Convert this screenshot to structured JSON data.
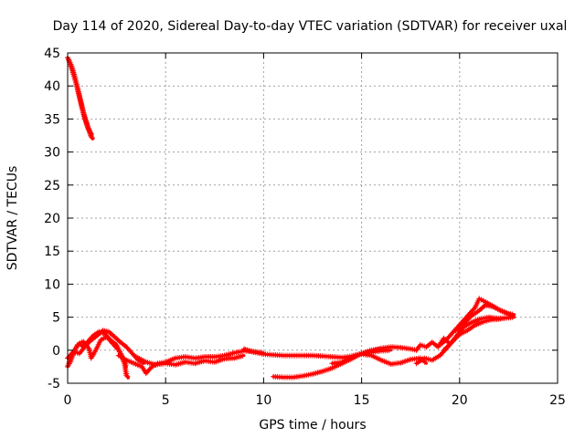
{
  "chart_data": {
    "type": "scatter",
    "title": "Day 114 of 2020, Sidereal Day-to-day VTEC variation (SDTVAR) for receiver uxal",
    "xlabel": "GPS time / hours",
    "ylabel": "SDTVAR / TECUs",
    "xlim": [
      0,
      25
    ],
    "ylim": [
      -5,
      45
    ],
    "xticks": [
      0,
      5,
      10,
      15,
      20,
      25
    ],
    "yticks": [
      -5,
      0,
      5,
      10,
      15,
      20,
      25,
      30,
      35,
      40,
      45
    ],
    "grid": true,
    "marker": "+",
    "series": [
      {
        "name": "SDTVAR",
        "color": "#ff0000",
        "traces": [
          [
            [
              0.0,
              44.3
            ],
            [
              0.2,
              43.0
            ],
            [
              0.4,
              41.0
            ],
            [
              0.6,
              38.5
            ],
            [
              0.8,
              36.0
            ],
            [
              1.0,
              34.0
            ],
            [
              1.2,
              32.3
            ],
            [
              1.3,
              32.0
            ]
          ],
          [
            [
              0.05,
              44.0
            ],
            [
              0.25,
              42.3
            ],
            [
              0.45,
              40.2
            ],
            [
              0.65,
              37.8
            ],
            [
              0.85,
              35.4
            ],
            [
              1.05,
              33.6
            ],
            [
              1.25,
              32.5
            ]
          ],
          [
            [
              0.0,
              -2.5
            ],
            [
              0.2,
              -1.0
            ],
            [
              0.4,
              0.3
            ],
            [
              0.6,
              1.0
            ],
            [
              0.8,
              0.5
            ],
            [
              1.0,
              1.2
            ],
            [
              1.3,
              2.2
            ],
            [
              1.6,
              2.8
            ],
            [
              1.9,
              2.5
            ],
            [
              2.2,
              1.5
            ],
            [
              2.5,
              0.8
            ],
            [
              2.7,
              -0.5
            ],
            [
              2.9,
              -2.0
            ],
            [
              3.0,
              -3.8
            ],
            [
              3.1,
              -4.2
            ]
          ],
          [
            [
              0.1,
              -2.0
            ],
            [
              0.3,
              -0.5
            ],
            [
              0.5,
              0.8
            ],
            [
              0.8,
              1.3
            ],
            [
              1.1,
              0.2
            ],
            [
              1.2,
              -1.2
            ],
            [
              1.4,
              -0.2
            ],
            [
              1.7,
              1.6
            ],
            [
              2.0,
              2.0
            ],
            [
              2.3,
              1.0
            ],
            [
              2.6,
              0.0
            ],
            [
              2.8,
              -1.0
            ],
            [
              3.0,
              -2.5
            ]
          ],
          [
            [
              0.0,
              -1.2
            ],
            [
              0.3,
              -0.2
            ],
            [
              0.6,
              -0.5
            ],
            [
              0.9,
              0.6
            ],
            [
              1.2,
              1.5
            ],
            [
              1.5,
              2.2
            ],
            [
              1.8,
              3.0
            ],
            [
              2.1,
              2.8
            ],
            [
              2.4,
              2.0
            ],
            [
              2.7,
              1.2
            ],
            [
              3.0,
              0.5
            ],
            [
              3.3,
              -0.5
            ],
            [
              3.6,
              -1.5
            ],
            [
              3.9,
              -2.0
            ]
          ],
          [
            [
              2.6,
              -0.8
            ],
            [
              3.0,
              -1.5
            ],
            [
              3.4,
              -2.0
            ],
            [
              3.8,
              -2.5
            ],
            [
              4.0,
              -3.5
            ],
            [
              4.3,
              -2.5
            ],
            [
              4.6,
              -2.0
            ],
            [
              5.0,
              -1.8
            ],
            [
              5.5,
              -1.2
            ],
            [
              6.0,
              -1.0
            ],
            [
              6.5,
              -1.2
            ],
            [
              7.0,
              -1.0
            ],
            [
              7.5,
              -1.0
            ],
            [
              8.0,
              -0.8
            ],
            [
              8.5,
              -0.4
            ],
            [
              9.0,
              -0.1
            ],
            [
              9.5,
              -0.2
            ],
            [
              10.0,
              -0.4
            ]
          ],
          [
            [
              3.5,
              -1.0
            ],
            [
              4.0,
              -1.8
            ],
            [
              4.5,
              -2.2
            ],
            [
              5.0,
              -2.0
            ],
            [
              5.5,
              -2.2
            ],
            [
              6.0,
              -1.8
            ],
            [
              6.5,
              -2.0
            ],
            [
              7.0,
              -1.6
            ],
            [
              7.5,
              -1.8
            ],
            [
              8.0,
              -1.3
            ],
            [
              8.5,
              -1.2
            ],
            [
              9.0,
              -0.8
            ]
          ],
          [
            [
              9.0,
              0.2
            ],
            [
              9.5,
              -0.3
            ],
            [
              10.0,
              -0.6
            ],
            [
              10.5,
              -0.7
            ],
            [
              11.0,
              -0.8
            ],
            [
              11.5,
              -0.8
            ],
            [
              12.0,
              -0.8
            ],
            [
              12.5,
              -0.8
            ],
            [
              13.0,
              -0.9
            ],
            [
              13.5,
              -1.0
            ],
            [
              14.0,
              -1.1
            ],
            [
              14.5,
              -0.9
            ],
            [
              15.0,
              -0.5
            ],
            [
              15.5,
              -0.3
            ],
            [
              16.0,
              -0.1
            ],
            [
              16.5,
              0.0
            ]
          ],
          [
            [
              10.5,
              -4.0
            ],
            [
              11.0,
              -4.1
            ],
            [
              11.5,
              -4.1
            ],
            [
              12.0,
              -3.9
            ],
            [
              12.5,
              -3.6
            ],
            [
              13.0,
              -3.2
            ],
            [
              13.5,
              -2.7
            ],
            [
              14.0,
              -2.0
            ],
            [
              14.5,
              -1.3
            ],
            [
              15.0,
              -0.5
            ],
            [
              15.5,
              0.0
            ],
            [
              16.0,
              0.2
            ]
          ],
          [
            [
              13.5,
              -2.0
            ],
            [
              14.0,
              -1.8
            ],
            [
              14.5,
              -1.0
            ],
            [
              15.0,
              -0.6
            ],
            [
              15.5,
              -0.8
            ],
            [
              16.0,
              -1.5
            ],
            [
              16.5,
              -2.1
            ],
            [
              17.0,
              -1.9
            ],
            [
              17.5,
              -1.4
            ],
            [
              18.0,
              -1.2
            ],
            [
              18.3,
              -2.0
            ]
          ],
          [
            [
              15.5,
              -0.2
            ],
            [
              16.0,
              0.3
            ],
            [
              16.5,
              0.5
            ],
            [
              17.0,
              0.4
            ],
            [
              17.5,
              0.2
            ],
            [
              17.8,
              0.0
            ],
            [
              18.0,
              0.8
            ],
            [
              18.3,
              0.5
            ],
            [
              18.6,
              1.2
            ],
            [
              18.9,
              0.5
            ],
            [
              19.2,
              1.8
            ],
            [
              19.5,
              1.0
            ]
          ],
          [
            [
              17.8,
              -2.0
            ],
            [
              18.2,
              -1.2
            ],
            [
              18.6,
              -1.5
            ],
            [
              19.0,
              -0.8
            ],
            [
              19.4,
              0.5
            ],
            [
              19.8,
              2.0
            ],
            [
              20.2,
              3.5
            ],
            [
              20.6,
              4.2
            ],
            [
              21.0,
              4.7
            ],
            [
              21.5,
              5.0
            ],
            [
              22.0,
              4.8
            ],
            [
              22.5,
              4.9
            ],
            [
              22.8,
              5.0
            ]
          ],
          [
            [
              19.0,
              0.8
            ],
            [
              19.3,
              1.5
            ],
            [
              19.6,
              2.5
            ],
            [
              19.9,
              3.5
            ],
            [
              20.2,
              4.5
            ],
            [
              20.5,
              5.5
            ],
            [
              20.8,
              6.5
            ],
            [
              21.0,
              7.8
            ],
            [
              21.2,
              7.5
            ],
            [
              21.5,
              7.0
            ],
            [
              21.8,
              6.5
            ],
            [
              22.1,
              6.0
            ],
            [
              22.4,
              5.6
            ],
            [
              22.7,
              5.2
            ]
          ],
          [
            [
              19.8,
              3.0
            ],
            [
              20.2,
              4.0
            ],
            [
              20.6,
              5.2
            ],
            [
              21.0,
              6.0
            ],
            [
              21.3,
              6.8
            ],
            [
              21.7,
              6.6
            ],
            [
              22.1,
              6.0
            ],
            [
              22.5,
              5.5
            ],
            [
              22.8,
              5.4
            ]
          ],
          [
            [
              19.2,
              0.0
            ],
            [
              19.6,
              1.2
            ],
            [
              20.0,
              2.4
            ],
            [
              20.4,
              3.0
            ],
            [
              20.8,
              3.8
            ],
            [
              21.2,
              4.3
            ],
            [
              21.6,
              4.6
            ],
            [
              22.0,
              4.7
            ],
            [
              22.4,
              4.9
            ]
          ]
        ]
      }
    ]
  }
}
